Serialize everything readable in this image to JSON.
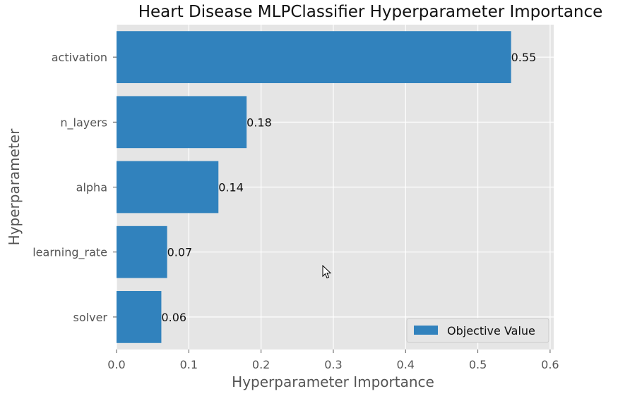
{
  "chart_data": {
    "type": "bar",
    "orientation": "horizontal",
    "title": "Heart Disease MLPClassifier Hyperparameter Importance",
    "xlabel": "Hyperparameter Importance",
    "ylabel": "Hyperparameter",
    "categories": [
      "activation",
      "n_layers",
      "alpha",
      "learning_rate",
      "solver"
    ],
    "series": [
      {
        "name": "Objective Value",
        "values": [
          0.546,
          0.18,
          0.141,
          0.07,
          0.062
        ],
        "labels": [
          "0.55",
          "0.18",
          "0.14",
          "0.07",
          "0.06"
        ],
        "color": "#3182bd"
      }
    ],
    "xlim": [
      0,
      0.605
    ],
    "xticks": [
      0.0,
      0.1,
      0.2,
      0.3,
      0.4,
      0.5,
      0.6
    ],
    "xtick_labels": [
      "0.0",
      "0.1",
      "0.2",
      "0.3",
      "0.4",
      "0.5",
      "0.6"
    ],
    "grid": true,
    "legend_position": "lower-right",
    "plot_background": "#e5e5e5",
    "grid_color": "#ffffff"
  },
  "cursor_icon": "mouse-pointer-icon"
}
